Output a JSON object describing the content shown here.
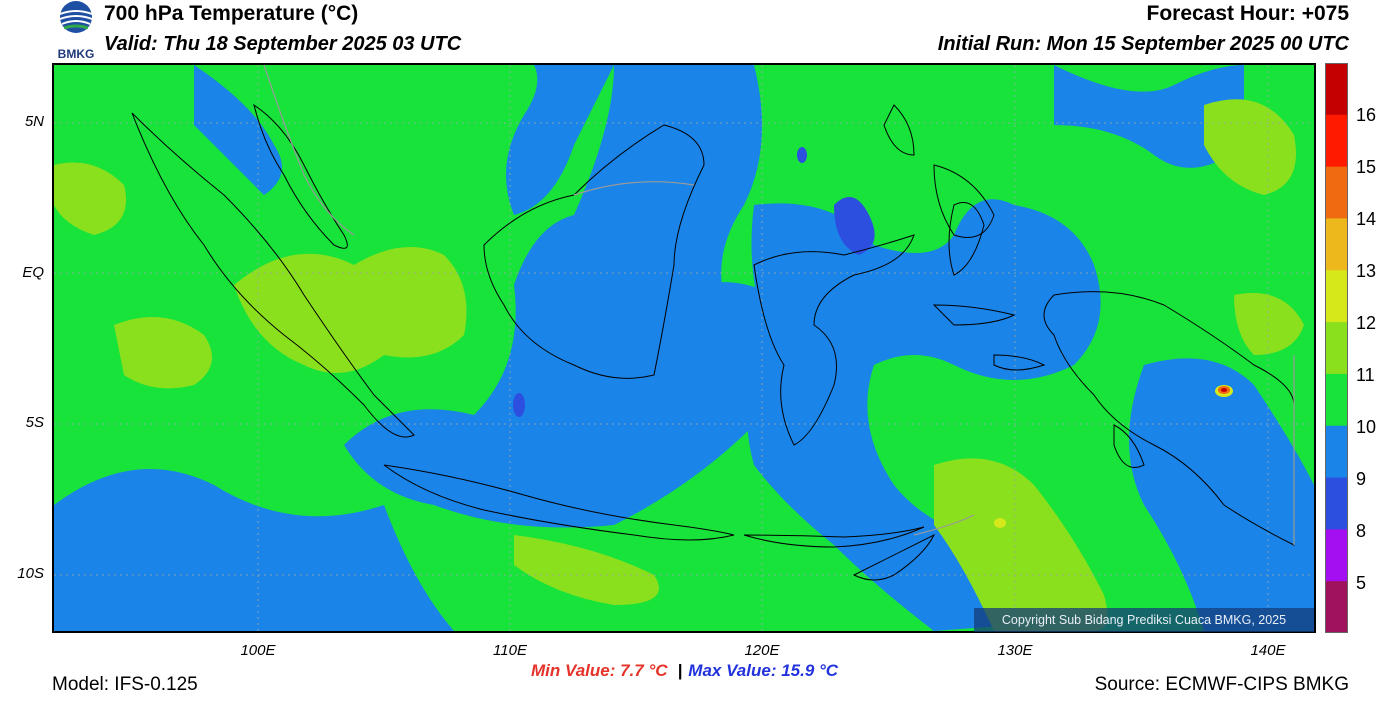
{
  "header": {
    "title": "700 hPa Temperature (°C)",
    "valid": "Valid: Thu 18 September 2025 03 UTC",
    "forecast_hour": "Forecast Hour: +075",
    "initial_run": "Initial Run: Mon 15 September 2025 00 UTC"
  },
  "logo": {
    "text": "BMKG"
  },
  "axes": {
    "lat_labels": [
      "5N",
      "EQ",
      "5S",
      "10S"
    ],
    "lon_labels": [
      "100E",
      "110E",
      "120E",
      "130E",
      "140E"
    ]
  },
  "colorbar": {
    "labels": [
      "16",
      "15",
      "14",
      "13",
      "12",
      "11",
      "10",
      "9",
      "8",
      "5"
    ],
    "colors": [
      "#c40000",
      "#ff1a00",
      "#f06a10",
      "#ecb81c",
      "#d7e81a",
      "#8be01d",
      "#18e33a",
      "#1a84e8",
      "#2c4fe0",
      "#a30ff0",
      "#a1125c"
    ]
  },
  "copyright": "Copyright Sub Bidang Prediksi Cuaca BMKG, 2025",
  "footer": {
    "model": "Model: IFS-0.125",
    "min_value": "Min Value: 7.7 °C",
    "separator": "|",
    "max_value": "Max Value: 15.9 °C",
    "source": "Source: ECMWF-CIPS BMKG"
  },
  "map_colors": {
    "blue": "#1a84e8",
    "green": "#18e33a",
    "lime": "#8be01d",
    "yellow": "#d7e81a",
    "deepblue": "#2c4fe0"
  }
}
